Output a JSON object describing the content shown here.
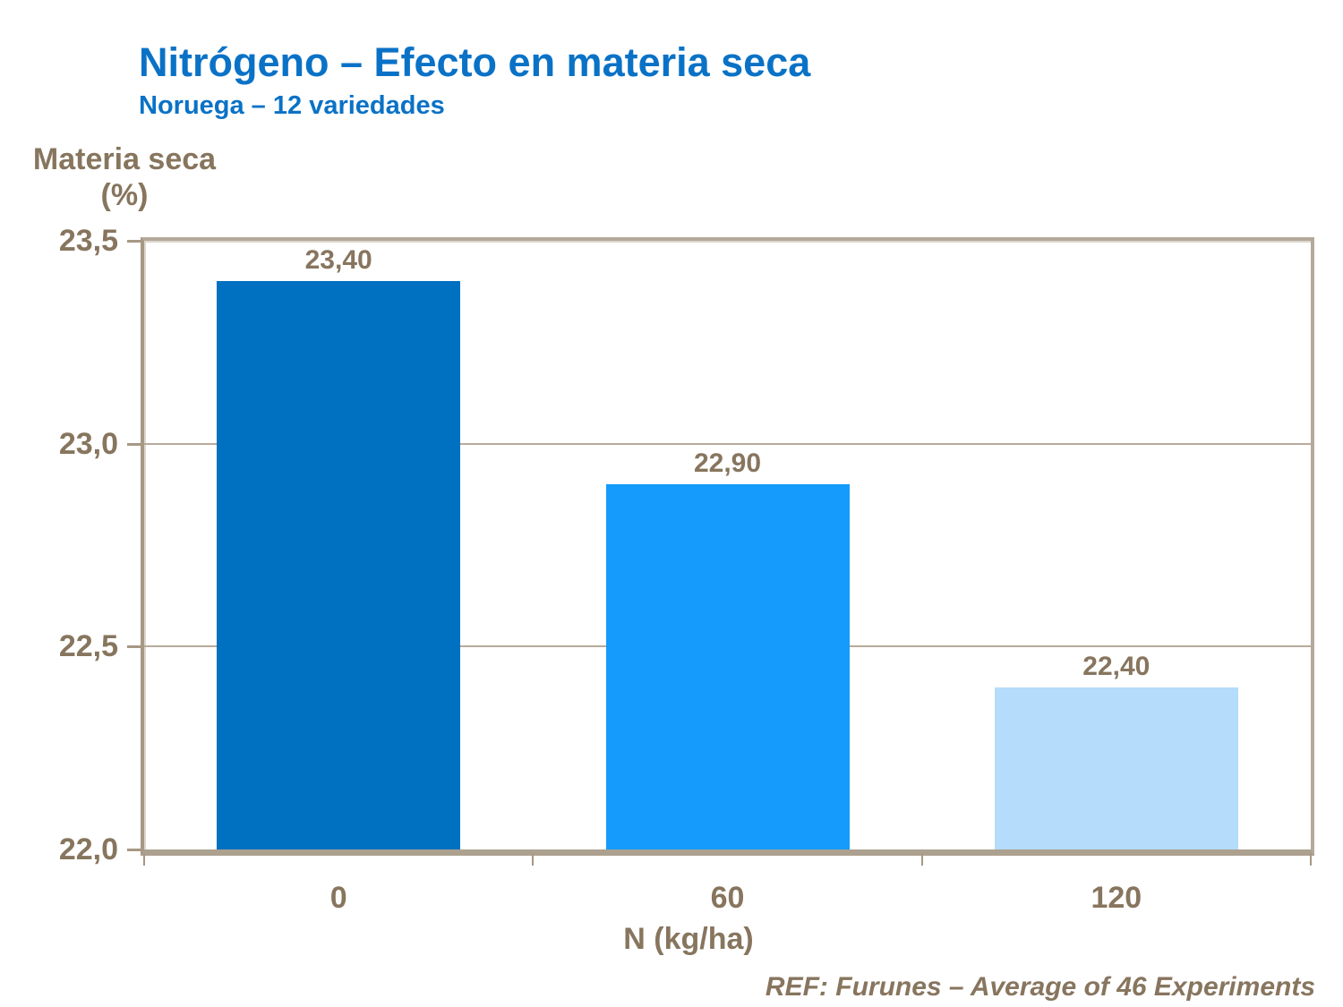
{
  "header": {
    "title": "Nitrógeno – Efecto en materia seca",
    "subtitle": "Noruega – 12 variedades",
    "title_color": "#0a72c6"
  },
  "axes": {
    "ylabel_line1": "Materia seca",
    "ylabel_line2": "(%)",
    "xlabel": "N (kg/ha)"
  },
  "footer": {
    "text": "REF: Furunes – Average of 46 Experiments"
  },
  "colors": {
    "accent_blue": "#0a72c6",
    "text_brown": "#87755e",
    "plot_border": "#b5a99c",
    "axis_line": "#a79884",
    "gridline": "#b8ab9b"
  },
  "chart_data": {
    "type": "bar",
    "title": "Nitrógeno – Efecto en materia seca",
    "subtitle": "Noruega – 12 variedades",
    "xlabel": "N (kg/ha)",
    "ylabel": "Materia seca (%)",
    "categories": [
      "0",
      "60",
      "120"
    ],
    "values": [
      23.4,
      22.9,
      22.4
    ],
    "value_labels": [
      "23,40",
      "22,90",
      "22,40"
    ],
    "bar_colors": [
      "#0070c0",
      "#149bfc",
      "#b5dcfa"
    ],
    "ylim": [
      22.0,
      23.5
    ],
    "ytick_values": [
      23.5,
      23.0,
      22.5,
      22.0
    ],
    "ytick_labels": [
      "23,5",
      "23,0",
      "22,5",
      "22,0"
    ],
    "gridline_values": [
      23.0,
      22.5
    ],
    "decimal_separator": ",",
    "grid": true,
    "legend": false,
    "annotation": "REF: Furunes – Average of 46 Experiments"
  }
}
